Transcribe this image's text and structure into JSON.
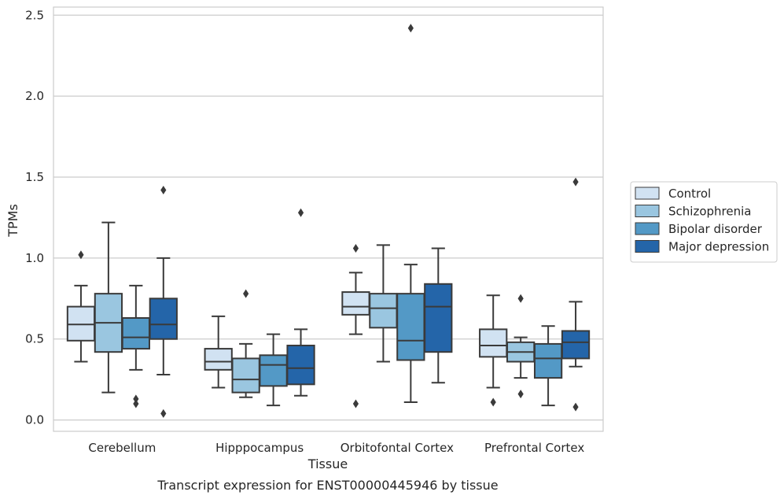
{
  "chart_data": {
    "type": "box",
    "title": "",
    "caption": "Transcript expression for ENST00000445946 by tissue",
    "xlabel": "Tissue",
    "ylabel": "TPMs",
    "ylim": [
      -0.07,
      2.55
    ],
    "yticks": [
      "0.0",
      "0.5",
      "1.0",
      "1.5",
      "2.0",
      "2.5"
    ],
    "ytick_values": [
      0.0,
      0.5,
      1.0,
      1.5,
      2.0,
      2.5
    ],
    "grid": true,
    "legend_position": "right",
    "categories": [
      "Cerebellum",
      "Hipppocampus",
      "Orbitofontal Cortex",
      "Prefrontal Cortex"
    ],
    "series": [
      {
        "name": "Control",
        "color": "#d1e2f2",
        "boxes": [
          {
            "whislo": 0.36,
            "q1": 0.49,
            "med": 0.59,
            "q3": 0.7,
            "whishi": 0.83,
            "fliers": [
              1.02
            ]
          },
          {
            "whislo": 0.2,
            "q1": 0.31,
            "med": 0.36,
            "q3": 0.44,
            "whishi": 0.64,
            "fliers": []
          },
          {
            "whislo": 0.53,
            "q1": 0.65,
            "med": 0.7,
            "q3": 0.79,
            "whishi": 0.91,
            "fliers": [
              1.06,
              0.1
            ]
          },
          {
            "whislo": 0.2,
            "q1": 0.39,
            "med": 0.46,
            "q3": 0.56,
            "whishi": 0.77,
            "fliers": [
              0.11
            ]
          }
        ]
      },
      {
        "name": "Schizophrenia",
        "color": "#9ac6e0",
        "boxes": [
          {
            "whislo": 0.17,
            "q1": 0.42,
            "med": 0.6,
            "q3": 0.78,
            "whishi": 1.22,
            "fliers": []
          },
          {
            "whislo": 0.14,
            "q1": 0.17,
            "med": 0.25,
            "q3": 0.38,
            "whishi": 0.47,
            "fliers": [
              0.78
            ]
          },
          {
            "whislo": 0.36,
            "q1": 0.57,
            "med": 0.69,
            "q3": 0.78,
            "whishi": 1.08,
            "fliers": []
          },
          {
            "whislo": 0.26,
            "q1": 0.36,
            "med": 0.42,
            "q3": 0.48,
            "whishi": 0.51,
            "fliers": [
              0.75,
              0.16
            ]
          }
        ]
      },
      {
        "name": "Bipolar disorder",
        "color": "#5399c6",
        "boxes": [
          {
            "whislo": 0.31,
            "q1": 0.44,
            "med": 0.51,
            "q3": 0.63,
            "whishi": 0.83,
            "fliers": [
              0.13,
              0.1
            ]
          },
          {
            "whislo": 0.09,
            "q1": 0.21,
            "med": 0.34,
            "q3": 0.4,
            "whishi": 0.53,
            "fliers": []
          },
          {
            "whislo": 0.11,
            "q1": 0.37,
            "med": 0.49,
            "q3": 0.78,
            "whishi": 0.96,
            "fliers": [
              2.42
            ]
          },
          {
            "whislo": 0.09,
            "q1": 0.26,
            "med": 0.38,
            "q3": 0.47,
            "whishi": 0.58,
            "fliers": []
          }
        ]
      },
      {
        "name": "Major depression",
        "color": "#2465a9",
        "boxes": [
          {
            "whislo": 0.28,
            "q1": 0.5,
            "med": 0.59,
            "q3": 0.75,
            "whishi": 1.0,
            "fliers": [
              1.42,
              0.04
            ]
          },
          {
            "whislo": 0.15,
            "q1": 0.22,
            "med": 0.32,
            "q3": 0.46,
            "whishi": 0.56,
            "fliers": [
              1.28
            ]
          },
          {
            "whislo": 0.23,
            "q1": 0.42,
            "med": 0.7,
            "q3": 0.84,
            "whishi": 1.06,
            "fliers": []
          },
          {
            "whislo": 0.33,
            "q1": 0.38,
            "med": 0.48,
            "q3": 0.55,
            "whishi": 0.73,
            "fliers": [
              1.47,
              0.08
            ]
          }
        ]
      }
    ]
  }
}
